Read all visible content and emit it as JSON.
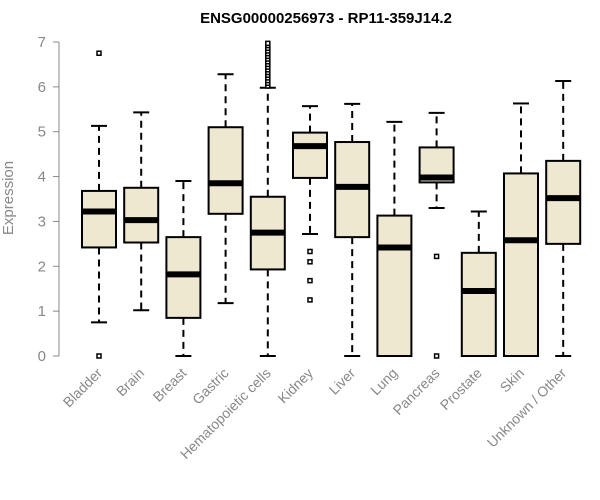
{
  "chart_data": {
    "type": "boxplot",
    "title": "ENSG00000256973 - RP11-359J14.2",
    "xlabel": "",
    "ylabel": "Expression",
    "ylim": [
      0,
      7
    ],
    "yticks": [
      "0",
      "1",
      "2",
      "3",
      "4",
      "5",
      "6",
      "7"
    ],
    "colors": {
      "box_fill": "#efe8d0",
      "stroke": "#000000",
      "axis_text": "#888888"
    },
    "categories": [
      "Bladder",
      "Brain",
      "Breast",
      "Gastric",
      "Hematopoietic cells",
      "Kidney",
      "Liver",
      "Lung",
      "Pancreas",
      "Prostate",
      "Skin",
      "Unknown / Other"
    ],
    "boxes": [
      {
        "name": "Bladder",
        "whisker_low": 0.75,
        "q1": 2.42,
        "median": 3.22,
        "q3": 3.68,
        "whisker_high": 5.13,
        "outliers": [
          0.0,
          6.75
        ]
      },
      {
        "name": "Brain",
        "whisker_low": 1.02,
        "q1": 2.53,
        "median": 3.03,
        "q3": 3.75,
        "whisker_high": 5.43,
        "outliers": []
      },
      {
        "name": "Breast",
        "whisker_low": 0.0,
        "q1": 0.85,
        "median": 1.82,
        "q3": 2.65,
        "whisker_high": 3.9,
        "outliers": []
      },
      {
        "name": "Gastric",
        "whisker_low": 1.18,
        "q1": 3.17,
        "median": 3.85,
        "q3": 5.1,
        "whisker_high": 6.28,
        "outliers": []
      },
      {
        "name": "Hematopoietic cells",
        "whisker_low": 0.0,
        "q1": 1.93,
        "median": 2.75,
        "q3": 3.55,
        "whisker_high": 5.98,
        "outliers": [
          6.02,
          6.08,
          6.14,
          6.2,
          6.26,
          6.32,
          6.38,
          6.44,
          6.5,
          6.56,
          6.62,
          6.68,
          6.74,
          6.8,
          6.86,
          6.92,
          6.97
        ]
      },
      {
        "name": "Kidney",
        "whisker_low": 2.72,
        "q1": 3.97,
        "median": 4.68,
        "q3": 4.98,
        "whisker_high": 5.57,
        "outliers": [
          1.25,
          1.68,
          2.1,
          2.33
        ]
      },
      {
        "name": "Liver",
        "whisker_low": 0.0,
        "q1": 2.65,
        "median": 3.77,
        "q3": 4.77,
        "whisker_high": 5.62,
        "outliers": []
      },
      {
        "name": "Lung",
        "whisker_low": 0.0,
        "q1": 0.0,
        "median": 2.42,
        "q3": 3.13,
        "whisker_high": 5.22,
        "outliers": []
      },
      {
        "name": "Pancreas",
        "whisker_low": 3.3,
        "q1": 3.87,
        "median": 3.98,
        "q3": 4.65,
        "whisker_high": 5.42,
        "outliers": [
          0.0,
          2.22
        ]
      },
      {
        "name": "Prostate",
        "whisker_low": 0.0,
        "q1": 0.0,
        "median": 1.45,
        "q3": 2.3,
        "whisker_high": 3.22,
        "outliers": []
      },
      {
        "name": "Skin",
        "whisker_low": 0.0,
        "q1": 0.0,
        "median": 2.58,
        "q3": 4.07,
        "whisker_high": 5.63,
        "outliers": []
      },
      {
        "name": "Unknown / Other",
        "whisker_low": 0.0,
        "q1": 2.5,
        "median": 3.52,
        "q3": 4.35,
        "whisker_high": 6.13,
        "outliers": []
      }
    ]
  }
}
